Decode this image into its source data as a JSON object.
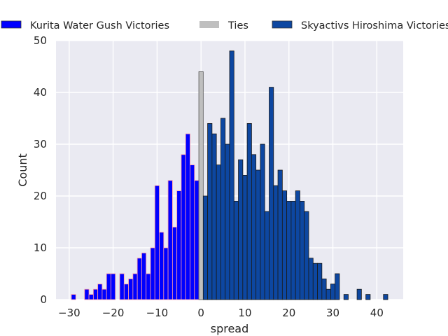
{
  "chart_data": {
    "type": "bar",
    "title": "",
    "xlabel": "spread",
    "ylabel": "Count",
    "xlim": [
      -33,
      46
    ],
    "ylim": [
      0,
      50
    ],
    "xticks": [
      "−30",
      "−20",
      "−10",
      "0",
      "10",
      "20",
      "30",
      "40"
    ],
    "xtick_values": [
      -30,
      -20,
      -10,
      0,
      10,
      20,
      30,
      40
    ],
    "yticks": [
      "0",
      "10",
      "20",
      "30",
      "40",
      "50"
    ],
    "ytick_values": [
      0,
      10,
      20,
      30,
      40,
      50
    ],
    "grid": true,
    "legend_position": "top",
    "series": [
      {
        "name": "Kurita Water Gush Victories",
        "color": "#0000ff",
        "edge_color": "#ff9aa2",
        "x": [
          -29,
          -26,
          -25,
          -24,
          -23,
          -22,
          -21,
          -20,
          -18,
          -17,
          -16,
          -15,
          -14,
          -13,
          -12,
          -11,
          -10,
          -9,
          -8,
          -7,
          -6,
          -5,
          -4,
          -3,
          -2,
          -1
        ],
        "values": [
          1,
          2,
          1,
          2,
          3,
          2,
          5,
          5,
          5,
          3,
          4,
          5,
          8,
          9,
          5,
          10,
          22,
          13,
          10,
          23,
          14,
          21,
          28,
          32,
          26,
          23
        ]
      },
      {
        "name": "Ties",
        "color": "#bfbfbf",
        "edge_color": "#555555",
        "x": [
          0
        ],
        "values": [
          44
        ]
      },
      {
        "name": "Skyactivs Hiroshima Victories",
        "color": "#0d47a1",
        "edge_color": "#1a1a1a",
        "x": [
          1,
          2,
          3,
          4,
          5,
          6,
          7,
          8,
          9,
          10,
          11,
          12,
          13,
          14,
          15,
          16,
          17,
          18,
          19,
          20,
          21,
          22,
          23,
          24,
          25,
          26,
          27,
          28,
          29,
          30,
          31,
          33,
          36,
          38,
          42
        ],
        "values": [
          20,
          34,
          32,
          26,
          35,
          30,
          48,
          19,
          27,
          24,
          34,
          28,
          25,
          30,
          17,
          41,
          22,
          25,
          21,
          19,
          19,
          21,
          19,
          17,
          8,
          7,
          7,
          4,
          2,
          3,
          5,
          1,
          2,
          1,
          1
        ]
      }
    ]
  }
}
